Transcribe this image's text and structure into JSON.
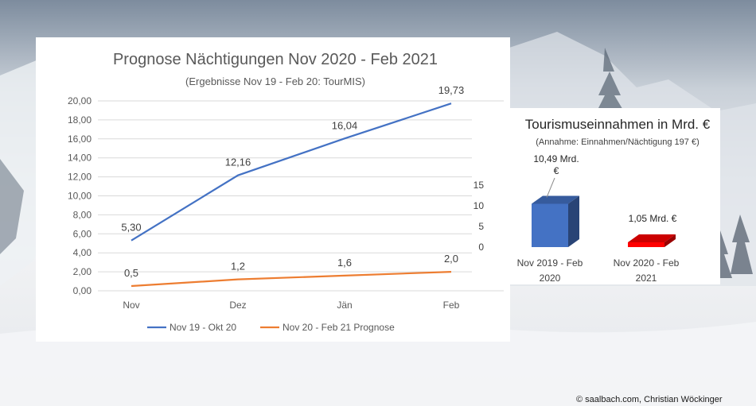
{
  "chart_data": [
    {
      "type": "line",
      "title": "Prognose Nächtigungen Nov 2020 - Feb 2021",
      "subtitle": "(Ergebnisse Nov 19 - Feb 20: TourMIS)",
      "categories": [
        "Nov",
        "Dez",
        "Jän",
        "Feb"
      ],
      "ylim": [
        0,
        20
      ],
      "yticks": [
        "0,00",
        "2,00",
        "4,00",
        "6,00",
        "8,00",
        "10,00",
        "12,00",
        "14,00",
        "16,00",
        "18,00",
        "20,00"
      ],
      "grid": true,
      "legend_position": "bottom",
      "series": [
        {
          "name": "Nov 19 - Okt 20",
          "values": [
            5.3,
            12.16,
            16.04,
            19.73
          ],
          "labels": [
            "5,30",
            "12,16",
            "16,04",
            "19,73"
          ],
          "color": "#4472c4"
        },
        {
          "name": "Nov 20 - Feb 21 Prognose",
          "values": [
            0.5,
            1.2,
            1.6,
            2.0
          ],
          "labels": [
            "0,5",
            "1,2",
            "1,6",
            "2,0"
          ],
          "color": "#ed7d31"
        }
      ]
    },
    {
      "type": "bar",
      "title": "Tourismuseinnahmen in Mrd. €",
      "subtitle": "(Annahme: Einnahmen/Nächtigung 197 €)",
      "categories": [
        "Nov 2019 - Feb 2020",
        "Nov 2020 - Feb 2021"
      ],
      "category_lines": [
        [
          "Nov 2019 - Feb",
          "2020"
        ],
        [
          "Nov 2020 - Feb",
          "2021"
        ]
      ],
      "values": [
        10.49,
        1.05
      ],
      "labels": [
        "10,49 Mrd. €",
        "1,05 Mrd. €"
      ],
      "label_lines": [
        [
          "10,49 Mrd.",
          "€"
        ],
        [
          "1,05 Mrd. €"
        ]
      ],
      "colors": [
        "#4472c4",
        "#ff0000"
      ],
      "ylim": [
        0,
        15
      ],
      "yticks": [
        "0",
        "5",
        "10",
        "15"
      ],
      "grid": false
    }
  ],
  "credit": "© saalbach.com, Christian Wöckinger"
}
